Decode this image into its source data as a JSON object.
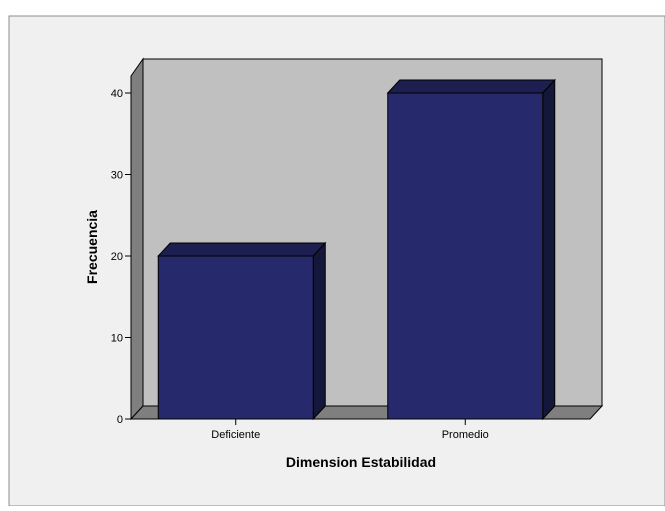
{
  "chart_data": {
    "type": "bar",
    "style": "3d",
    "categories": [
      "Deficiente",
      "Promedio"
    ],
    "values": [
      20,
      40
    ],
    "xlabel": "Dimension Estabilidad",
    "ylabel": "Frecuencia",
    "ylim": [
      0,
      40
    ],
    "yticks": [
      0,
      10,
      20,
      30,
      40
    ],
    "grid": false,
    "legend": "none",
    "colors": {
      "bar_front": "#262A6C",
      "bar_top": "#1C1F4F",
      "bar_side": "#14163A",
      "wall_back": "#C0C0C0",
      "wall_side": "#7F7F7F",
      "floor": "#7F7F7F",
      "page_background": "#F0F0F0"
    }
  }
}
